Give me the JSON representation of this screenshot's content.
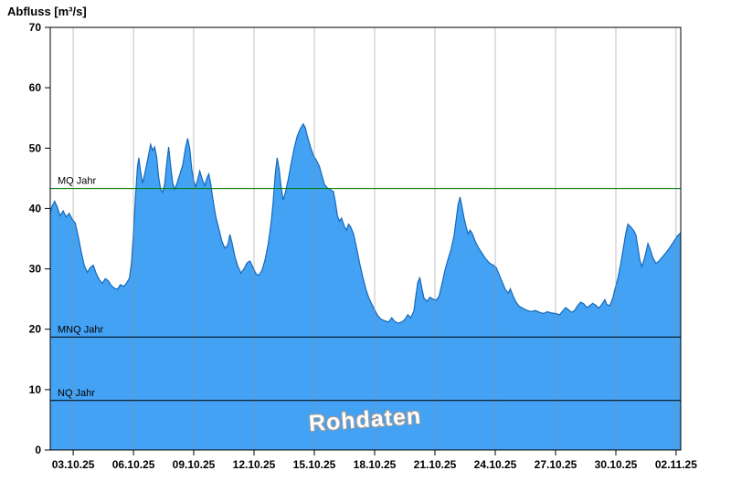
{
  "title": "Abfluss [m³/s]",
  "watermark": "Rohdaten",
  "chart_data": {
    "type": "area",
    "title": "Abfluss [m³/s]",
    "ylabel": "Abfluss [m³/s]",
    "xlabel": "",
    "ylim": [
      0,
      70
    ],
    "y_ticks": [
      0,
      10,
      20,
      30,
      40,
      50,
      60,
      70
    ],
    "x_tick_labels": [
      "03.10.25",
      "06.10.25",
      "09.10.25",
      "12.10.25",
      "15.10.25",
      "18.10.25",
      "21.10.25",
      "24.10.25",
      "27.10.25",
      "30.10.25",
      "02.11.25"
    ],
    "x_tick_days": [
      3,
      6,
      9,
      12,
      15,
      18,
      21,
      24,
      27,
      30,
      33
    ],
    "x_domain_days": [
      1.86,
      33.23
    ],
    "grid": "vertical-only",
    "legend": "none",
    "colors": {
      "area_fill": "#43a2f4",
      "area_stroke": "#1668b8",
      "grid": "#8f8f8f",
      "mq_line": "#007a00",
      "mnq_line": "#000000",
      "nq_line": "#000000"
    },
    "reference_lines": [
      {
        "id": "mq",
        "label": "MQ Jahr",
        "value": 43.3,
        "color": "#007a00"
      },
      {
        "id": "mnq",
        "label": "MNQ Jahr",
        "value": 18.7,
        "color": "#000000"
      },
      {
        "id": "nq",
        "label": "NQ Jahr",
        "value": 8.2,
        "color": "#000000"
      }
    ],
    "series": [
      {
        "name": "Rohdaten",
        "points": [
          [
            1.86,
            39.3
          ],
          [
            1.95,
            40.4
          ],
          [
            2.08,
            41.2
          ],
          [
            2.2,
            40.3
          ],
          [
            2.35,
            38.8
          ],
          [
            2.5,
            39.6
          ],
          [
            2.65,
            38.6
          ],
          [
            2.8,
            39.2
          ],
          [
            2.95,
            38.2
          ],
          [
            3.1,
            37.6
          ],
          [
            3.25,
            35.4
          ],
          [
            3.4,
            32.8
          ],
          [
            3.55,
            30.6
          ],
          [
            3.7,
            29.4
          ],
          [
            3.85,
            30.2
          ],
          [
            4.0,
            30.6
          ],
          [
            4.15,
            29.2
          ],
          [
            4.3,
            28.2
          ],
          [
            4.45,
            27.6
          ],
          [
            4.6,
            28.4
          ],
          [
            4.75,
            28.0
          ],
          [
            4.9,
            27.2
          ],
          [
            5.05,
            26.8
          ],
          [
            5.2,
            26.6
          ],
          [
            5.35,
            27.4
          ],
          [
            5.5,
            27.1
          ],
          [
            5.65,
            27.6
          ],
          [
            5.8,
            28.5
          ],
          [
            5.9,
            31.0
          ],
          [
            6.0,
            36.0
          ],
          [
            6.1,
            42.0
          ],
          [
            6.2,
            47.0
          ],
          [
            6.27,
            48.4
          ],
          [
            6.35,
            46.2
          ],
          [
            6.45,
            44.2
          ],
          [
            6.55,
            45.6
          ],
          [
            6.7,
            48.0
          ],
          [
            6.85,
            50.6
          ],
          [
            6.95,
            49.6
          ],
          [
            7.05,
            50.2
          ],
          [
            7.15,
            48.6
          ],
          [
            7.25,
            45.2
          ],
          [
            7.35,
            43.2
          ],
          [
            7.45,
            42.7
          ],
          [
            7.55,
            44.0
          ],
          [
            7.65,
            47.4
          ],
          [
            7.75,
            50.2
          ],
          [
            7.85,
            47.0
          ],
          [
            7.95,
            44.2
          ],
          [
            8.05,
            43.2
          ],
          [
            8.15,
            44.0
          ],
          [
            8.3,
            45.6
          ],
          [
            8.45,
            47.2
          ],
          [
            8.6,
            50.2
          ],
          [
            8.7,
            51.6
          ],
          [
            8.8,
            50.0
          ],
          [
            8.9,
            46.6
          ],
          [
            9.0,
            44.6
          ],
          [
            9.1,
            43.6
          ],
          [
            9.2,
            44.8
          ],
          [
            9.3,
            46.2
          ],
          [
            9.45,
            44.6
          ],
          [
            9.55,
            43.8
          ],
          [
            9.65,
            45.0
          ],
          [
            9.75,
            45.7
          ],
          [
            9.85,
            44.0
          ],
          [
            9.95,
            41.6
          ],
          [
            10.1,
            38.6
          ],
          [
            10.25,
            36.6
          ],
          [
            10.4,
            34.6
          ],
          [
            10.55,
            33.4
          ],
          [
            10.7,
            34.0
          ],
          [
            10.8,
            35.7
          ],
          [
            10.9,
            34.4
          ],
          [
            11.05,
            32.0
          ],
          [
            11.2,
            30.4
          ],
          [
            11.35,
            29.3
          ],
          [
            11.5,
            30.0
          ],
          [
            11.65,
            31.0
          ],
          [
            11.8,
            31.3
          ],
          [
            11.95,
            30.2
          ],
          [
            12.1,
            29.2
          ],
          [
            12.25,
            28.9
          ],
          [
            12.4,
            29.8
          ],
          [
            12.55,
            31.5
          ],
          [
            12.7,
            34.0
          ],
          [
            12.85,
            37.6
          ],
          [
            12.95,
            41.0
          ],
          [
            13.05,
            45.5
          ],
          [
            13.15,
            48.4
          ],
          [
            13.25,
            46.5
          ],
          [
            13.35,
            43.5
          ],
          [
            13.45,
            41.4
          ],
          [
            13.55,
            42.5
          ],
          [
            13.7,
            44.8
          ],
          [
            13.85,
            47.5
          ],
          [
            14.0,
            50.0
          ],
          [
            14.15,
            52.0
          ],
          [
            14.3,
            53.2
          ],
          [
            14.45,
            54.0
          ],
          [
            14.55,
            53.4
          ],
          [
            14.65,
            52.0
          ],
          [
            14.8,
            50.3
          ],
          [
            14.95,
            48.8
          ],
          [
            15.1,
            48.0
          ],
          [
            15.25,
            47.0
          ],
          [
            15.4,
            45.2
          ],
          [
            15.5,
            44.0
          ],
          [
            15.65,
            43.4
          ],
          [
            15.8,
            43.1
          ],
          [
            15.95,
            42.8
          ],
          [
            16.05,
            41.0
          ],
          [
            16.15,
            38.8
          ],
          [
            16.25,
            37.9
          ],
          [
            16.35,
            38.4
          ],
          [
            16.5,
            37.0
          ],
          [
            16.6,
            36.4
          ],
          [
            16.7,
            37.4
          ],
          [
            16.8,
            37.0
          ],
          [
            16.95,
            35.8
          ],
          [
            17.1,
            33.5
          ],
          [
            17.25,
            31.0
          ],
          [
            17.4,
            28.8
          ],
          [
            17.55,
            26.8
          ],
          [
            17.7,
            25.3
          ],
          [
            17.85,
            24.2
          ],
          [
            18.0,
            23.2
          ],
          [
            18.15,
            22.3
          ],
          [
            18.3,
            21.7
          ],
          [
            18.5,
            21.4
          ],
          [
            18.7,
            21.2
          ],
          [
            18.85,
            21.9
          ],
          [
            19.0,
            21.3
          ],
          [
            19.15,
            21.0
          ],
          [
            19.35,
            21.2
          ],
          [
            19.5,
            21.6
          ],
          [
            19.65,
            22.4
          ],
          [
            19.8,
            21.9
          ],
          [
            19.95,
            23.0
          ],
          [
            20.05,
            25.5
          ],
          [
            20.15,
            27.8
          ],
          [
            20.25,
            28.5
          ],
          [
            20.35,
            26.8
          ],
          [
            20.45,
            25.2
          ],
          [
            20.6,
            24.6
          ],
          [
            20.75,
            25.3
          ],
          [
            20.9,
            25.0
          ],
          [
            21.05,
            24.8
          ],
          [
            21.2,
            25.4
          ],
          [
            21.35,
            27.5
          ],
          [
            21.5,
            29.8
          ],
          [
            21.65,
            31.6
          ],
          [
            21.8,
            33.2
          ],
          [
            21.95,
            35.5
          ],
          [
            22.05,
            38.0
          ],
          [
            22.15,
            40.6
          ],
          [
            22.25,
            41.9
          ],
          [
            22.35,
            40.2
          ],
          [
            22.45,
            38.4
          ],
          [
            22.55,
            37.0
          ],
          [
            22.65,
            35.8
          ],
          [
            22.75,
            36.4
          ],
          [
            22.85,
            35.9
          ],
          [
            23.0,
            34.6
          ],
          [
            23.15,
            33.6
          ],
          [
            23.3,
            32.8
          ],
          [
            23.5,
            31.8
          ],
          [
            23.7,
            31.0
          ],
          [
            23.9,
            30.6
          ],
          [
            24.05,
            30.2
          ],
          [
            24.2,
            29.0
          ],
          [
            24.35,
            27.8
          ],
          [
            24.5,
            26.6
          ],
          [
            24.65,
            26.0
          ],
          [
            24.75,
            26.7
          ],
          [
            24.9,
            25.4
          ],
          [
            25.05,
            24.4
          ],
          [
            25.2,
            23.8
          ],
          [
            25.4,
            23.4
          ],
          [
            25.6,
            23.1
          ],
          [
            25.8,
            22.9
          ],
          [
            26.0,
            23.1
          ],
          [
            26.2,
            22.8
          ],
          [
            26.4,
            22.6
          ],
          [
            26.6,
            22.9
          ],
          [
            26.8,
            22.7
          ],
          [
            27.0,
            22.6
          ],
          [
            27.2,
            22.4
          ],
          [
            27.35,
            23.0
          ],
          [
            27.5,
            23.6
          ],
          [
            27.65,
            23.2
          ],
          [
            27.8,
            22.8
          ],
          [
            27.95,
            23.1
          ],
          [
            28.1,
            23.9
          ],
          [
            28.25,
            24.5
          ],
          [
            28.4,
            24.2
          ],
          [
            28.55,
            23.6
          ],
          [
            28.7,
            23.9
          ],
          [
            28.85,
            24.3
          ],
          [
            29.0,
            24.0
          ],
          [
            29.15,
            23.5
          ],
          [
            29.3,
            24.1
          ],
          [
            29.45,
            24.9
          ],
          [
            29.55,
            24.1
          ],
          [
            29.7,
            23.9
          ],
          [
            29.85,
            25.2
          ],
          [
            29.95,
            26.6
          ],
          [
            30.1,
            28.4
          ],
          [
            30.25,
            31.0
          ],
          [
            30.4,
            34.0
          ],
          [
            30.5,
            36.0
          ],
          [
            30.6,
            37.4
          ],
          [
            30.75,
            36.9
          ],
          [
            30.9,
            36.3
          ],
          [
            31.0,
            35.6
          ],
          [
            31.1,
            33.6
          ],
          [
            31.2,
            31.4
          ],
          [
            31.3,
            30.4
          ],
          [
            31.45,
            32.0
          ],
          [
            31.6,
            34.2
          ],
          [
            31.7,
            33.4
          ],
          [
            31.85,
            31.8
          ],
          [
            32.0,
            30.9
          ],
          [
            32.15,
            31.3
          ],
          [
            32.3,
            31.9
          ],
          [
            32.5,
            32.7
          ],
          [
            32.7,
            33.6
          ],
          [
            32.9,
            34.6
          ],
          [
            33.05,
            35.4
          ],
          [
            33.23,
            36.0
          ]
        ]
      }
    ]
  }
}
